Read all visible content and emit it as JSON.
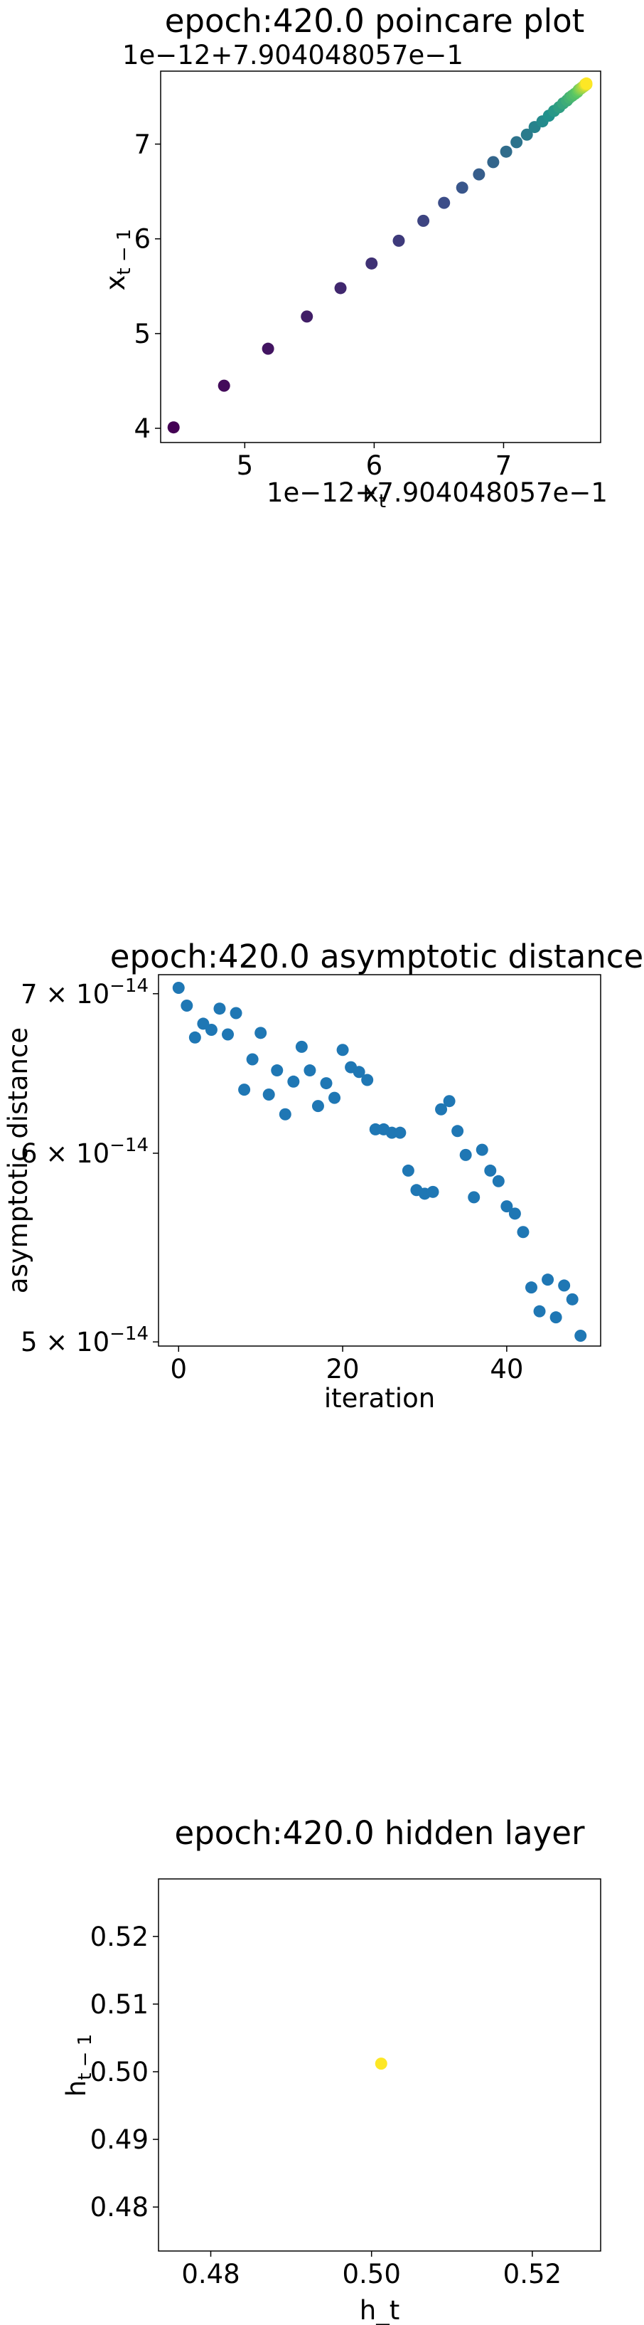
{
  "chart_data": [
    {
      "type": "scatter",
      "title": "epoch:420.0 poincare plot",
      "xlabel": "x_t",
      "ylabel": "x_{t−1}",
      "x_offset_label": "1e−12+7.904048057e−1",
      "y_offset_label": "1e−12+7.904048057e−1",
      "x_ticks": [
        "5",
        "6",
        "7"
      ],
      "y_ticks": [
        "4",
        "5",
        "6",
        "7"
      ],
      "xlim": [
        4.35,
        7.75
      ],
      "ylim": [
        3.85,
        7.77
      ],
      "colormap": [
        "#440154",
        "#3b528b",
        "#21918c",
        "#5ec962",
        "#fde725"
      ],
      "points": [
        {
          "x": 4.45,
          "y": 4.01
        },
        {
          "x": 4.84,
          "y": 4.45
        },
        {
          "x": 5.18,
          "y": 4.84
        },
        {
          "x": 5.48,
          "y": 5.18
        },
        {
          "x": 5.74,
          "y": 5.48
        },
        {
          "x": 5.98,
          "y": 5.74
        },
        {
          "x": 6.19,
          "y": 5.98
        },
        {
          "x": 6.38,
          "y": 6.19
        },
        {
          "x": 6.54,
          "y": 6.38
        },
        {
          "x": 6.68,
          "y": 6.54
        },
        {
          "x": 6.81,
          "y": 6.68
        },
        {
          "x": 6.92,
          "y": 6.81
        },
        {
          "x": 7.02,
          "y": 6.92
        },
        {
          "x": 7.1,
          "y": 7.02
        },
        {
          "x": 7.18,
          "y": 7.1
        },
        {
          "x": 7.24,
          "y": 7.18
        },
        {
          "x": 7.3,
          "y": 7.24
        },
        {
          "x": 7.35,
          "y": 7.3
        },
        {
          "x": 7.39,
          "y": 7.35
        },
        {
          "x": 7.43,
          "y": 7.39
        },
        {
          "x": 7.46,
          "y": 7.43
        },
        {
          "x": 7.49,
          "y": 7.46
        },
        {
          "x": 7.51,
          "y": 7.49
        },
        {
          "x": 7.53,
          "y": 7.51
        },
        {
          "x": 7.55,
          "y": 7.53
        },
        {
          "x": 7.57,
          "y": 7.55
        },
        {
          "x": 7.58,
          "y": 7.57
        },
        {
          "x": 7.59,
          "y": 7.58
        },
        {
          "x": 7.6,
          "y": 7.59
        },
        {
          "x": 7.61,
          "y": 7.6
        },
        {
          "x": 7.62,
          "y": 7.61
        },
        {
          "x": 7.63,
          "y": 7.62
        },
        {
          "x": 7.63,
          "y": 7.63
        },
        {
          "x": 7.64,
          "y": 7.63
        },
        {
          "x": 7.64,
          "y": 7.64
        }
      ]
    },
    {
      "type": "scatter",
      "title": "epoch:420.0 asymptotic distance",
      "xlabel": "iteration",
      "ylabel": "asymptotic distance",
      "yscale": "log",
      "color": "#1f77b4",
      "x_ticks": [
        "0",
        "20",
        "40"
      ],
      "x_tick_values": [
        0,
        20,
        40
      ],
      "y_tick_mantissas": [
        "5",
        "6",
        "7"
      ],
      "y_tick_exp": "−14",
      "y_tick_values": [
        5e-14,
        6e-14,
        7e-14
      ],
      "xlim": [
        -2.45,
        51.45
      ],
      "ylim": [
        4.98e-14,
        7.13e-14
      ],
      "x": [
        0,
        1,
        2,
        3,
        4,
        5,
        6,
        7,
        8,
        9,
        10,
        11,
        12,
        13,
        14,
        15,
        16,
        17,
        18,
        19,
        20,
        21,
        22,
        23,
        24,
        25,
        26,
        27,
        28,
        29,
        30,
        31,
        32,
        33,
        34,
        35,
        36,
        37,
        38,
        39,
        40,
        41,
        42,
        43,
        44,
        45,
        46,
        47,
        48,
        49
      ],
      "y": [
        7.04e-14,
        6.92e-14,
        6.71e-14,
        6.8e-14,
        6.76e-14,
        6.9e-14,
        6.73e-14,
        6.87e-14,
        6.38e-14,
        6.57e-14,
        6.74e-14,
        6.35e-14,
        6.5e-14,
        6.23e-14,
        6.43e-14,
        6.65e-14,
        6.5e-14,
        6.28e-14,
        6.42e-14,
        6.33e-14,
        6.63e-14,
        6.52e-14,
        6.49e-14,
        6.44e-14,
        6.14e-14,
        6.14e-14,
        6.12e-14,
        6.12e-14,
        5.9e-14,
        5.79e-14,
        5.77e-14,
        5.78e-14,
        6.26e-14,
        6.31e-14,
        6.13e-14,
        5.99e-14,
        5.75e-14,
        6.02e-14,
        5.9e-14,
        5.84e-14,
        5.7e-14,
        5.66e-14,
        5.56e-14,
        5.27e-14,
        5.15e-14,
        5.31e-14,
        5.12e-14,
        5.28e-14,
        5.21e-14,
        5.03e-14
      ]
    },
    {
      "type": "scatter",
      "title": "epoch:420.0 hidden layer",
      "xlabel": "h_t",
      "ylabel": "h_{t−1}",
      "x_ticks": [
        "0.48",
        "0.50",
        "0.52"
      ],
      "x_tick_values": [
        0.48,
        0.5,
        0.52
      ],
      "y_ticks": [
        "0.48",
        "0.49",
        "0.50",
        "0.51",
        "0.52"
      ],
      "y_tick_values": [
        0.48,
        0.49,
        0.5,
        0.51,
        0.52
      ],
      "xlim": [
        0.4735,
        0.5285
      ],
      "ylim": [
        0.4735,
        0.5285
      ],
      "color": "#fde725",
      "points": [
        {
          "x": 0.5012,
          "y": 0.5012
        }
      ]
    }
  ]
}
